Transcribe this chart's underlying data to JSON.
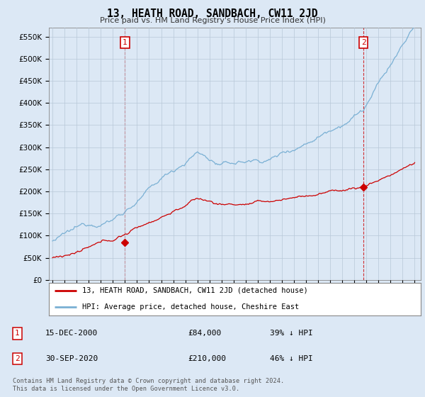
{
  "title": "13, HEATH ROAD, SANDBACH, CW11 2JD",
  "subtitle": "Price paid vs. HM Land Registry's House Price Index (HPI)",
  "ylabel_ticks": [
    "£0",
    "£50K",
    "£100K",
    "£150K",
    "£200K",
    "£250K",
    "£300K",
    "£350K",
    "£400K",
    "£450K",
    "£500K",
    "£550K"
  ],
  "ylim": [
    0,
    570000
  ],
  "xlim_start": 1994.7,
  "xlim_end": 2025.5,
  "legend_line1": "13, HEATH ROAD, SANDBACH, CW11 2JD (detached house)",
  "legend_line2": "HPI: Average price, detached house, Cheshire East",
  "sale1_date": "15-DEC-2000",
  "sale1_price": "£84,000",
  "sale1_hpi": "39% ↓ HPI",
  "sale2_date": "30-SEP-2020",
  "sale2_price": "£210,000",
  "sale2_hpi": "46% ↓ HPI",
  "footer": "Contains HM Land Registry data © Crown copyright and database right 2024.\nThis data is licensed under the Open Government Licence v3.0.",
  "red_color": "#cc0000",
  "blue_color": "#7ab0d4",
  "background_color": "#dce8f5",
  "plot_bg_color": "#dce8f5",
  "grid_color": "#b8c8d8",
  "sale1_x": 2001.0,
  "sale1_y": 84000,
  "sale2_x": 2020.75,
  "sale2_y": 210000
}
